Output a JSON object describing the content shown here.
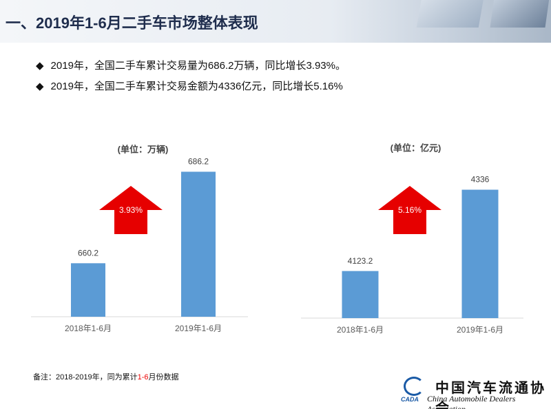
{
  "header": {
    "title": "一、2019年1-6月二手车市场整体表现"
  },
  "bullets": [
    "2019年，全国二手车累计交易量为686.2万辆，同比增长3.93%。",
    "2019年，全国二手车累计交易金额为4336亿元，同比增长5.16%"
  ],
  "chart_data": [
    {
      "type": "bar",
      "unit_label": "(单位：万辆)",
      "categories": [
        "2018年1-6月",
        "2019年1-6月"
      ],
      "values": [
        660.2,
        686.2
      ],
      "color": "#5b9bd5",
      "ylim": [
        645,
        690
      ],
      "annotation": "3.93%",
      "annotation_color": "#e60000"
    },
    {
      "type": "bar",
      "unit_label": "(单位：亿元)",
      "categories": [
        "2018年1-6月",
        "2019年1-6月"
      ],
      "values": [
        4123.2,
        4336
      ],
      "color": "#5b9bd5",
      "ylim": [
        4000,
        4400
      ],
      "annotation": "5.16%",
      "annotation_color": "#e60000"
    }
  ],
  "footnote": [
    "备注：2018-2019年，同为累计",
    "1-6",
    "月份数据"
  ],
  "logo": {
    "chinese": "中国汽车流通协会",
    "english": "China Automobile Dealers Association",
    "abbr": "CADA"
  }
}
